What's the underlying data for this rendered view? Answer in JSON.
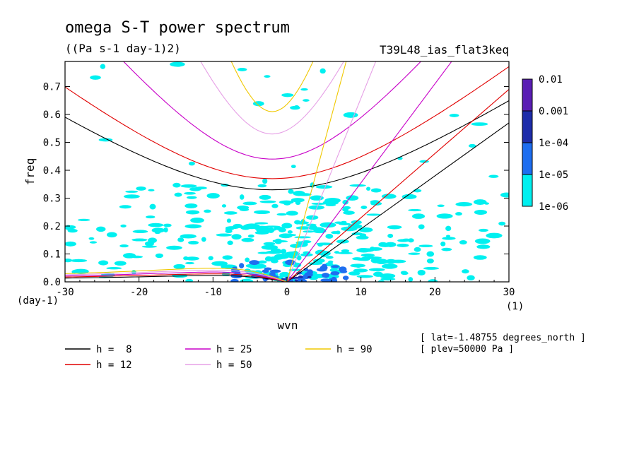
{
  "chart_data": {
    "type": "contour",
    "title": "omega S-T power spectrum",
    "subtitle": "((Pa s-1 day-1)2)",
    "run_label": "T39L48_ias_flat3keq",
    "xlabel": "wvn",
    "ylabel": "freq",
    "x_unit": "(1)",
    "y_unit": "(day-1)",
    "xlim": [
      -30,
      30
    ],
    "ylim": [
      0,
      0.79
    ],
    "x_ticks": [
      -30,
      -20,
      -10,
      0,
      10,
      20,
      30
    ],
    "y_ticks": [
      0.0,
      0.1,
      0.2,
      0.3,
      0.4,
      0.5,
      0.6,
      0.7
    ],
    "x_tick_labels": [
      "-30",
      "-20",
      "-10",
      "0",
      "10",
      "20",
      "30"
    ],
    "y_tick_labels": [
      "0.0",
      "0.1",
      "0.2",
      "0.3",
      "0.4",
      "0.5",
      "0.6",
      "0.7"
    ],
    "colorbar": {
      "levels": [
        "0.01",
        "0.001",
        "1e-04",
        "1e-05",
        "1e-06"
      ],
      "colors": [
        "#5a1eb4",
        "#1e2daa",
        "#1e6ef0",
        "#00f0f0"
      ]
    },
    "curve_colors": {
      "h8": "#000000",
      "h12": "#e10000",
      "h25": "#c800c8",
      "h50": "#e6a0e6",
      "h90": "#f0c800"
    },
    "legend": [
      {
        "label": "h =  8",
        "color": "#000000"
      },
      {
        "label": "h = 12",
        "color": "#e10000"
      },
      {
        "label": "h = 25",
        "color": "#c800c8"
      },
      {
        "label": "h = 50",
        "color": "#e6a0e6"
      },
      {
        "label": "h = 90",
        "color": "#f0c800"
      }
    ],
    "notes": [
      "[ lat=-1.48755 degrees_north ]",
      "[ plev=50000 Pa ]"
    ],
    "dispersion_min_freq": [
      {
        "h": 8,
        "freq": 0.33
      },
      {
        "h": 12,
        "freq": 0.37
      },
      {
        "h": 25,
        "freq": 0.44
      },
      {
        "h": 50,
        "freq": 0.53
      },
      {
        "h": 90,
        "freq": 0.61
      }
    ],
    "kelvin_freq_at_wvn": [
      {
        "h": 8,
        "wvn": 30,
        "freq": 0.57
      },
      {
        "h": 12,
        "wvn": 30,
        "freq": 0.69
      },
      {
        "h": 25,
        "wvn": 20,
        "freq": 0.71
      },
      {
        "h": 50,
        "wvn": 12,
        "freq": 0.79
      },
      {
        "h": 90,
        "wvn": 8,
        "freq": 0.79
      }
    ]
  }
}
